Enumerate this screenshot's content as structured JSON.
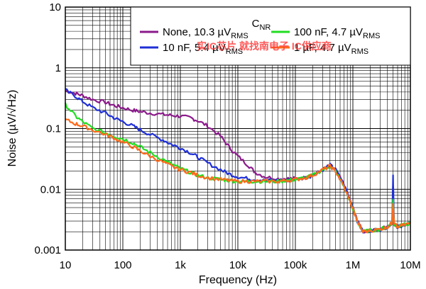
{
  "chart_data": {
    "type": "line",
    "xlabel": "Frequency (Hz)",
    "ylabel": "Noise (µV/√Hz)",
    "x_scale": "log",
    "y_scale": "log",
    "xlim": [
      10,
      10000000
    ],
    "ylim": [
      0.001,
      10
    ],
    "grid": true,
    "x_ticks": [
      {
        "value": 10,
        "label": "10"
      },
      {
        "value": 100,
        "label": "100"
      },
      {
        "value": 1000,
        "label": "1k"
      },
      {
        "value": 10000,
        "label": "10k"
      },
      {
        "value": 100000,
        "label": "100k"
      },
      {
        "value": 1000000,
        "label": "1M"
      },
      {
        "value": 10000000,
        "label": "10M"
      }
    ],
    "y_ticks": [
      {
        "value": 0.001,
        "label": "0.001"
      },
      {
        "value": 0.01,
        "label": "0.01"
      },
      {
        "value": 0.1,
        "label": "0.1"
      },
      {
        "value": 1,
        "label": "1"
      },
      {
        "value": 10,
        "label": "10"
      }
    ],
    "legend": {
      "title": "C",
      "title_sub": "NR",
      "placement": "top-right"
    },
    "series": [
      {
        "name": "None, 10.3 µV",
        "name_sub": "RMS",
        "color": "#8b1a8b",
        "x": [
          10,
          15,
          20,
          30,
          50,
          70,
          100,
          150,
          200,
          300,
          500,
          700,
          1000,
          1500,
          2000,
          3000,
          5000,
          7000,
          10000,
          15000,
          20000,
          30000,
          50000,
          70000,
          100000,
          150000,
          200000,
          300000,
          400000,
          500000,
          700000,
          1000000,
          1200000,
          1500000,
          2000000,
          3000000,
          4000000,
          4800000,
          5000000,
          5200000,
          6000000,
          8000000,
          10000000
        ],
        "y": [
          0.42,
          0.38,
          0.35,
          0.3,
          0.27,
          0.24,
          0.22,
          0.2,
          0.19,
          0.18,
          0.17,
          0.165,
          0.16,
          0.15,
          0.135,
          0.11,
          0.075,
          0.05,
          0.035,
          0.025,
          0.019,
          0.016,
          0.015,
          0.015,
          0.015,
          0.0155,
          0.017,
          0.021,
          0.025,
          0.021,
          0.012,
          0.005,
          0.003,
          0.002,
          0.0021,
          0.0022,
          0.0024,
          0.0028,
          0.007,
          0.0027,
          0.0024,
          0.0026,
          0.0028
        ]
      },
      {
        "name": "10 nF, 5.4 µV",
        "name_sub": "RMS",
        "color": "#1f2fd6",
        "x": [
          10,
          15,
          20,
          30,
          50,
          70,
          100,
          150,
          200,
          300,
          500,
          700,
          1000,
          1500,
          2000,
          3000,
          5000,
          7000,
          10000,
          15000,
          20000,
          30000,
          50000,
          70000,
          100000,
          150000,
          200000,
          300000,
          400000,
          500000,
          700000,
          1000000,
          1200000,
          1500000,
          2000000,
          3000000,
          4000000,
          4800000,
          5000000,
          5200000,
          6000000,
          8000000,
          10000000
        ],
        "y": [
          0.43,
          0.34,
          0.28,
          0.22,
          0.18,
          0.15,
          0.13,
          0.11,
          0.095,
          0.08,
          0.065,
          0.055,
          0.048,
          0.04,
          0.034,
          0.027,
          0.021,
          0.018,
          0.016,
          0.015,
          0.0145,
          0.014,
          0.014,
          0.014,
          0.0145,
          0.0155,
          0.017,
          0.021,
          0.025,
          0.021,
          0.012,
          0.005,
          0.003,
          0.002,
          0.0021,
          0.0022,
          0.0024,
          0.0028,
          0.016,
          0.0027,
          0.0024,
          0.0026,
          0.0028
        ]
      },
      {
        "name": "100 nF, 4.7 µV",
        "name_sub": "RMS",
        "color": "#22dd22",
        "x": [
          10,
          15,
          20,
          30,
          50,
          70,
          100,
          150,
          200,
          300,
          500,
          700,
          1000,
          1500,
          2000,
          3000,
          5000,
          7000,
          10000,
          15000,
          20000,
          30000,
          50000,
          70000,
          100000,
          150000,
          200000,
          300000,
          400000,
          500000,
          700000,
          1000000,
          1200000,
          1500000,
          2000000,
          3000000,
          4000000,
          4800000,
          5000000,
          5200000,
          6000000,
          8000000,
          10000000
        ],
        "y": [
          0.25,
          0.16,
          0.13,
          0.1,
          0.085,
          0.075,
          0.068,
          0.058,
          0.05,
          0.04,
          0.031,
          0.026,
          0.022,
          0.019,
          0.017,
          0.0155,
          0.0145,
          0.014,
          0.0135,
          0.0135,
          0.0135,
          0.0135,
          0.0135,
          0.014,
          0.0145,
          0.0155,
          0.017,
          0.021,
          0.024,
          0.02,
          0.011,
          0.0048,
          0.0029,
          0.002,
          0.0021,
          0.0022,
          0.0024,
          0.0028,
          0.007,
          0.0027,
          0.0024,
          0.0026,
          0.0028
        ]
      },
      {
        "name": "1 µF, 4.7 µV",
        "name_sub": "RMS",
        "color": "#ff6a1a",
        "x": [
          10,
          15,
          20,
          30,
          50,
          70,
          100,
          150,
          200,
          300,
          500,
          700,
          1000,
          1500,
          2000,
          3000,
          5000,
          7000,
          10000,
          15000,
          20000,
          30000,
          50000,
          70000,
          100000,
          150000,
          200000,
          300000,
          400000,
          500000,
          700000,
          1000000,
          1200000,
          1500000,
          2000000,
          3000000,
          4000000,
          4800000,
          5000000,
          5200000,
          6000000,
          8000000,
          10000000
        ],
        "y": [
          0.14,
          0.12,
          0.11,
          0.095,
          0.08,
          0.07,
          0.06,
          0.05,
          0.043,
          0.035,
          0.028,
          0.024,
          0.021,
          0.019,
          0.017,
          0.0155,
          0.0145,
          0.014,
          0.0135,
          0.0135,
          0.0135,
          0.0135,
          0.0135,
          0.014,
          0.0145,
          0.0155,
          0.017,
          0.021,
          0.024,
          0.02,
          0.011,
          0.0048,
          0.0029,
          0.002,
          0.0021,
          0.0022,
          0.0024,
          0.0028,
          0.006,
          0.0027,
          0.0024,
          0.0026,
          0.0028
        ]
      }
    ],
    "watermark": "实IC芯片 就找南电子 IC供应商"
  },
  "colors": {
    "background": "#ffffff",
    "grid": "#000000",
    "watermark": "#ff3b3b"
  }
}
